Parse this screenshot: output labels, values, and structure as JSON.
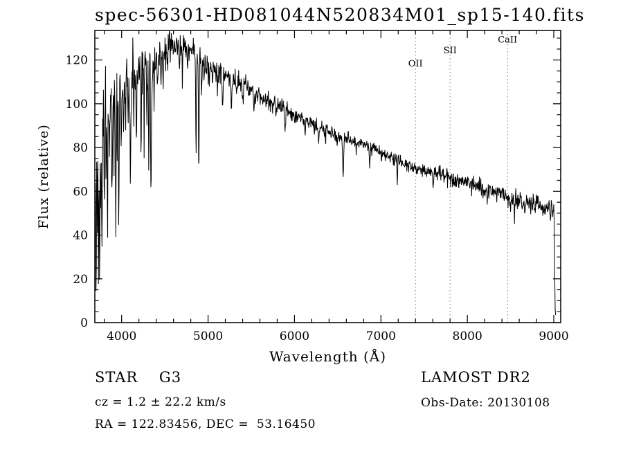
{
  "colors": {
    "foreground": "#000000",
    "background": "#ffffff",
    "marker_line": "#777777"
  },
  "chart_data": {
    "type": "line",
    "title": "spec-56301-HD081044N520834M01_sp15-140.fits",
    "xlabel": "Wavelength (Å)",
    "ylabel": "Flux (relative)",
    "series_name": "flux",
    "xlim": [
      3690,
      9080
    ],
    "ylim": [
      0,
      133.5
    ],
    "x_ticks": [
      4000,
      5000,
      6000,
      7000,
      8000,
      9000
    ],
    "x_minor_step": 200,
    "y_ticks": [
      0,
      20,
      40,
      60,
      80,
      100,
      120
    ],
    "y_minor_step": 5,
    "grid": false,
    "legend": null,
    "line_markers": [
      {
        "wavelength": 7400,
        "label": "OII",
        "label_flux": 117
      },
      {
        "wavelength": 7800,
        "label": "SII",
        "label_flux": 123
      },
      {
        "wavelength": 8465,
        "label": "CaII",
        "label_flux": 128
      }
    ],
    "wl_start": 3695,
    "wl_end": 9020,
    "n_samples": 1300,
    "noise_seed": 20130108,
    "continuum": [
      [
        3695,
        75
      ],
      [
        3710,
        85
      ],
      [
        3730,
        92
      ],
      [
        3760,
        96
      ],
      [
        3800,
        100
      ],
      [
        3850,
        102
      ],
      [
        3900,
        104
      ],
      [
        3950,
        106
      ],
      [
        4000,
        108
      ],
      [
        4100,
        111
      ],
      [
        4200,
        114
      ],
      [
        4300,
        117
      ],
      [
        4400,
        120
      ],
      [
        4500,
        124
      ],
      [
        4600,
        127
      ],
      [
        4700,
        127
      ],
      [
        4800,
        124
      ],
      [
        4900,
        121
      ],
      [
        5000,
        118
      ],
      [
        5100,
        115
      ],
      [
        5200,
        113
      ],
      [
        5300,
        111
      ],
      [
        5400,
        109
      ],
      [
        5500,
        106
      ],
      [
        5600,
        103
      ],
      [
        5700,
        101
      ],
      [
        5800,
        100
      ],
      [
        5900,
        97
      ],
      [
        6000,
        95
      ],
      [
        6100,
        93
      ],
      [
        6200,
        91
      ],
      [
        6300,
        89
      ],
      [
        6400,
        87
      ],
      [
        6500,
        86
      ],
      [
        6600,
        84
      ],
      [
        6700,
        83
      ],
      [
        6800,
        81
      ],
      [
        6900,
        80
      ],
      [
        7000,
        78
      ],
      [
        7100,
        76
      ],
      [
        7200,
        74
      ],
      [
        7300,
        72
      ],
      [
        7400,
        71
      ],
      [
        7500,
        70
      ],
      [
        7600,
        69
      ],
      [
        7700,
        68
      ],
      [
        7800,
        66
      ],
      [
        7900,
        65
      ],
      [
        8000,
        64
      ],
      [
        8100,
        63
      ],
      [
        8200,
        61
      ],
      [
        8300,
        60
      ],
      [
        8400,
        59
      ],
      [
        8500,
        57
      ],
      [
        8600,
        56
      ],
      [
        8700,
        55
      ],
      [
        8800,
        54
      ],
      [
        8900,
        52
      ],
      [
        9000,
        51
      ],
      [
        9006,
        45
      ],
      [
        9012,
        20
      ],
      [
        9018,
        2
      ]
    ],
    "absorption_features": [
      [
        3705,
        55,
        4
      ],
      [
        3719,
        45,
        3
      ],
      [
        3731,
        55,
        4
      ],
      [
        3744,
        62,
        4
      ],
      [
        3757,
        48,
        3
      ],
      [
        3772,
        65,
        5
      ],
      [
        3798,
        45,
        4
      ],
      [
        3820,
        33,
        3
      ],
      [
        3835,
        50,
        4
      ],
      [
        3860,
        30,
        3
      ],
      [
        3889,
        54,
        4
      ],
      [
        3912,
        33,
        3
      ],
      [
        3933,
        58,
        5
      ],
      [
        3950,
        30,
        3
      ],
      [
        3969,
        54,
        5
      ],
      [
        3995,
        25,
        3
      ],
      [
        4026,
        30,
        3
      ],
      [
        4045,
        24,
        3
      ],
      [
        4077,
        30,
        3
      ],
      [
        4101,
        46,
        5
      ],
      [
        4144,
        24,
        3
      ],
      [
        4172,
        28,
        3
      ],
      [
        4226,
        36,
        4
      ],
      [
        4260,
        24,
        3
      ],
      [
        4290,
        28,
        3
      ],
      [
        4315,
        50,
        4
      ],
      [
        4340,
        55,
        5
      ],
      [
        4375,
        24,
        3
      ],
      [
        4415,
        20,
        3
      ],
      [
        4455,
        15,
        3
      ],
      [
        4481,
        17,
        3
      ],
      [
        4530,
        11,
        3
      ],
      [
        4668,
        11,
        3
      ],
      [
        4703,
        13,
        3
      ],
      [
        4762,
        11,
        3
      ],
      [
        4861,
        40,
        4
      ],
      [
        4893,
        55,
        4
      ],
      [
        4925,
        14,
        4
      ],
      [
        4957,
        10,
        3
      ],
      [
        5015,
        10,
        3
      ],
      [
        5110,
        8,
        4
      ],
      [
        5170,
        14,
        6
      ],
      [
        5270,
        10,
        5
      ],
      [
        5330,
        8,
        4
      ],
      [
        5405,
        7,
        4
      ],
      [
        5530,
        8,
        4
      ],
      [
        5785,
        7,
        4
      ],
      [
        5890,
        12,
        5
      ],
      [
        6122,
        6,
        4
      ],
      [
        6280,
        7,
        4
      ],
      [
        6360,
        6,
        3
      ],
      [
        6495,
        7,
        4
      ],
      [
        6563,
        20,
        5
      ],
      [
        6715,
        6,
        3
      ],
      [
        6870,
        9,
        4
      ],
      [
        7190,
        7,
        4
      ],
      [
        7605,
        9,
        5
      ],
      [
        8230,
        6,
        4
      ],
      [
        8500,
        7,
        4
      ],
      [
        8545,
        7,
        4
      ],
      [
        8665,
        7,
        4
      ]
    ],
    "noise_profile": [
      [
        3695,
        12
      ],
      [
        3760,
        12
      ],
      [
        3850,
        10.5
      ],
      [
        3950,
        9.5
      ],
      [
        4050,
        8.5
      ],
      [
        4150,
        7.5
      ],
      [
        4250,
        6.5
      ],
      [
        4350,
        5.5
      ],
      [
        4450,
        4.5
      ],
      [
        4600,
        3.5
      ],
      [
        4800,
        3.0
      ],
      [
        5000,
        2.6
      ],
      [
        5300,
        2.3
      ],
      [
        5600,
        2.0
      ],
      [
        6000,
        1.8
      ],
      [
        6500,
        1.6
      ],
      [
        7000,
        1.5
      ],
      [
        7500,
        1.6
      ],
      [
        8000,
        1.8
      ],
      [
        8500,
        2.0
      ],
      [
        9000,
        2.2
      ],
      [
        9020,
        1.0
      ]
    ]
  },
  "annotations": {
    "object_class": "STAR    G3",
    "survey": "LAMOST DR2",
    "cz": "cz = 1.2 ± 22.2 km/s",
    "obs_date": "Obs-Date: 20130108",
    "ra_dec": "RA = 122.83456, DEC =  53.16450"
  }
}
